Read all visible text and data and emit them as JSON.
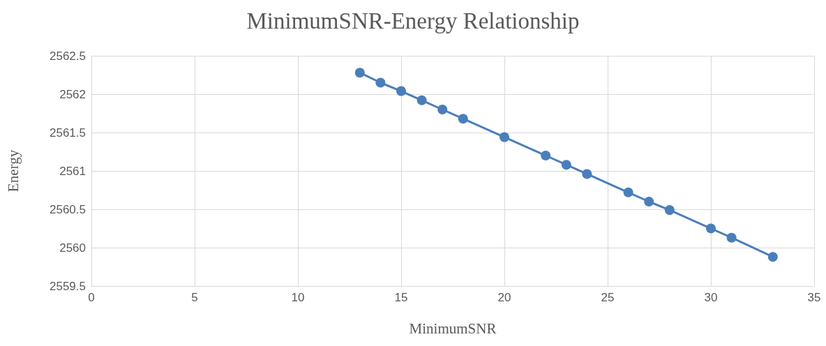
{
  "chart_data": {
    "type": "line",
    "title": "MinimumSNR-Energy Relationship",
    "xlabel": "MinimumSNR",
    "ylabel": "Energy",
    "x": [
      13,
      14,
      15,
      16,
      17,
      18,
      20,
      22,
      23,
      24,
      26,
      27,
      28,
      30,
      31,
      33
    ],
    "series": [
      {
        "color": "#4a7ebb",
        "values": [
          2562.28,
          2562.15,
          2562.04,
          2561.92,
          2561.8,
          2561.68,
          2561.44,
          2561.2,
          2561.08,
          2560.96,
          2560.72,
          2560.6,
          2560.49,
          2560.25,
          2560.13,
          2559.88
        ]
      }
    ],
    "xlim": [
      0,
      35
    ],
    "xticks": [
      0,
      5,
      10,
      15,
      20,
      25,
      30,
      35
    ],
    "ylim": [
      2559.5,
      2562.5
    ],
    "yticks": [
      2559.5,
      2560,
      2560.5,
      2561,
      2561.5,
      2562,
      2562.5
    ],
    "grid": true,
    "marker": "circle",
    "line_style": "solid"
  }
}
